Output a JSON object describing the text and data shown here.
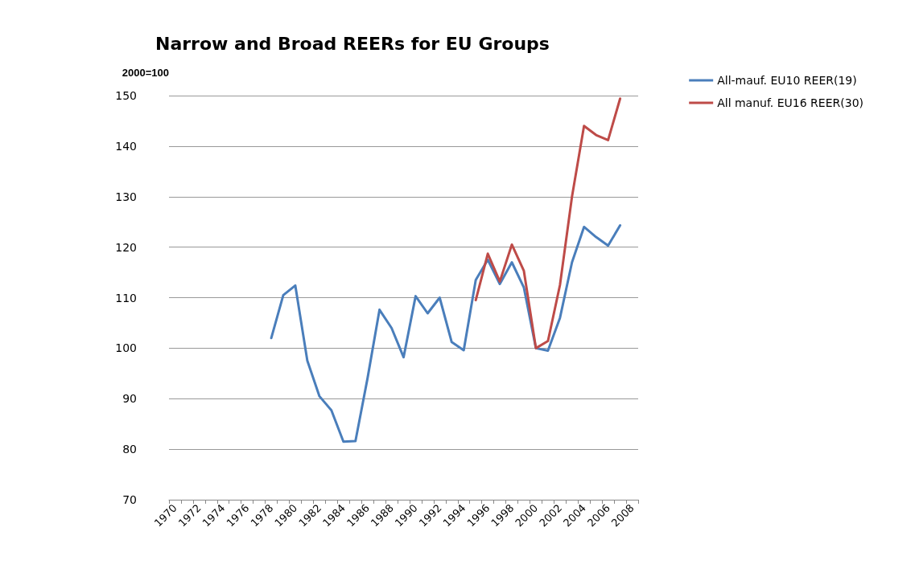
{
  "chart_data": {
    "type": "line",
    "title": "Narrow and Broad REERs for EU Groups",
    "ylabel": "2000=100",
    "categories": [
      "1970",
      null,
      "1972",
      null,
      "1974",
      null,
      "1976",
      null,
      "1978",
      null,
      "1980",
      null,
      "1982",
      null,
      "1984",
      null,
      "1986",
      null,
      "1988",
      null,
      "1990",
      null,
      "1992",
      null,
      "1994",
      null,
      "1996",
      null,
      "1998",
      null,
      "2000",
      null,
      "2002",
      null,
      "2004",
      null,
      "2006",
      null,
      "2008"
    ],
    "series": [
      {
        "name": "All-mauf. EU10 REER(19)",
        "color": "#4a7ebb",
        "values": [
          null,
          null,
          null,
          null,
          null,
          null,
          null,
          null,
          102,
          110.5,
          112.4,
          97.5,
          90.5,
          87.7,
          81.5,
          81.6,
          94,
          107.6,
          104,
          98.2,
          110.3,
          106.9,
          110,
          101.2,
          99.6,
          113.5,
          117.5,
          112.7,
          117,
          112,
          100,
          99.5,
          106,
          117,
          124,
          122,
          120.3,
          124.3,
          null
        ]
      },
      {
        "name": "All manuf. EU16 REER(30)",
        "color": "#be4b48",
        "values": [
          null,
          null,
          null,
          null,
          null,
          null,
          null,
          null,
          null,
          null,
          null,
          null,
          null,
          null,
          null,
          null,
          null,
          null,
          null,
          null,
          null,
          null,
          null,
          null,
          null,
          109.5,
          118.7,
          113.2,
          120.5,
          115.3,
          100,
          101.4,
          112.5,
          130,
          144,
          142.2,
          141.2,
          149.4,
          null
        ]
      }
    ],
    "ylim": [
      70,
      150
    ],
    "yticks": [
      70,
      80,
      90,
      100,
      110,
      120,
      130,
      140,
      150
    ],
    "grid": "y",
    "legend": "top right",
    "marker": "none",
    "line_style": "solid"
  }
}
